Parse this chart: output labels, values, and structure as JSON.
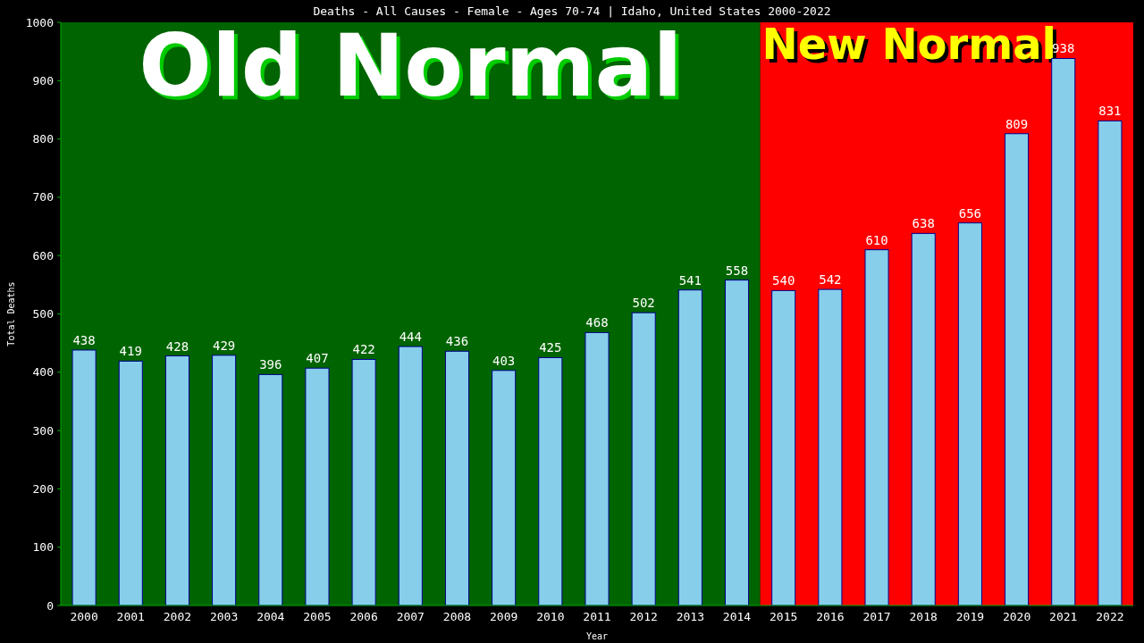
{
  "chart_data": {
    "type": "bar",
    "title": "Deaths - All Causes - Female - Ages 70-74 | Idaho, United States 2000-2022",
    "xlabel": "Year",
    "ylabel": "Total Deaths",
    "categories": [
      "2000",
      "2001",
      "2002",
      "2003",
      "2004",
      "2005",
      "2006",
      "2007",
      "2008",
      "2009",
      "2010",
      "2011",
      "2012",
      "2013",
      "2014",
      "2015",
      "2016",
      "2017",
      "2018",
      "2019",
      "2020",
      "2021",
      "2022"
    ],
    "values": [
      438,
      419,
      428,
      429,
      396,
      407,
      422,
      444,
      436,
      403,
      425,
      468,
      502,
      541,
      558,
      540,
      542,
      610,
      638,
      656,
      809,
      938,
      831
    ],
    "color": "#87ceeb",
    "data_labels": true,
    "ylim": [
      0,
      1000
    ],
    "yticks": [
      0,
      100,
      200,
      300,
      400,
      500,
      600,
      700,
      800,
      900,
      1000
    ],
    "grid": false,
    "bands": [
      {
        "axis": "x",
        "from": "2000",
        "to": "2014",
        "label": "Old Normal",
        "color": "#006400"
      },
      {
        "axis": "x",
        "from": "2015",
        "to": "2022",
        "label": "New Normal",
        "color": "#ff0000"
      }
    ]
  }
}
